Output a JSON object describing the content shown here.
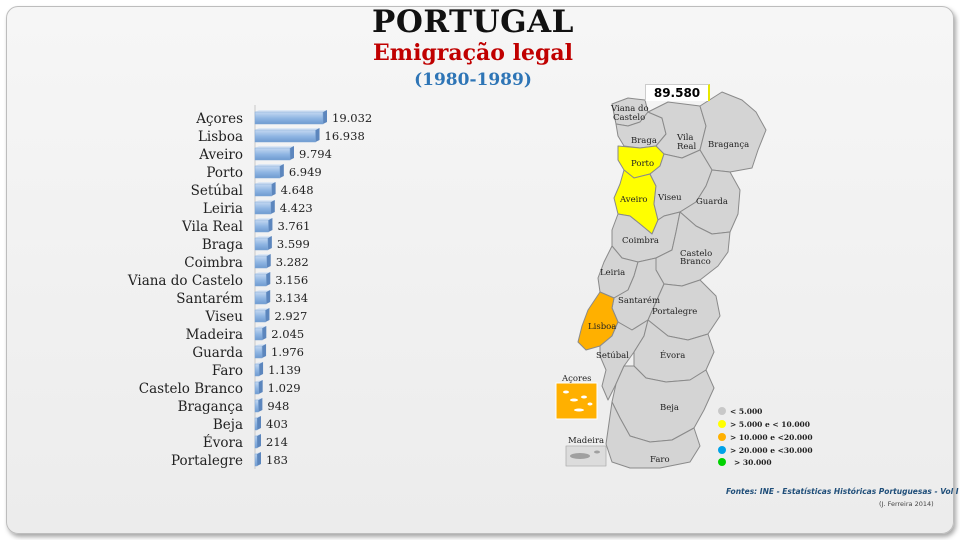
{
  "header": {
    "title": "PORTUGAL",
    "subtitle": "Emigração legal",
    "period": "(1980-1989)"
  },
  "map": {
    "total_label": "89.580",
    "district_labels": [
      "Viana do Castelo",
      "Braga",
      "Vila Real",
      "Bragança",
      "Porto",
      "Aveiro",
      "Viseu",
      "Guarda",
      "Coimbra",
      "Castelo Branco",
      "Leiria",
      "Santarém",
      "Portalegre",
      "Lisboa",
      "Setúbal",
      "Évora",
      "Beja",
      "Faro",
      "Açores",
      "Madeira"
    ],
    "legend": [
      {
        "label": "< 5.000",
        "color": "#c8c8c8"
      },
      {
        "label": "> 5.000 e < 10.000",
        "color": "#ffff00"
      },
      {
        "label": "> 10.000 e <20.000",
        "color": "#ffb000"
      },
      {
        "label": "> 20.000 e <30.000",
        "color": "#00a2e8"
      },
      {
        "label": "> 30.000",
        "color": "#00d200"
      }
    ],
    "fill_colors": {
      "gray": "#d4d4d4",
      "yellow": "#ffff00",
      "orange": "#ffb000"
    }
  },
  "footer": {
    "source": "Fontes: INE - Estatísticas Históricas Portuguesas - Vol I",
    "credit": "(J. Ferreira 2014)"
  },
  "chart_data": {
    "type": "bar",
    "orientation": "horizontal",
    "categories": [
      "Açores",
      "Lisboa",
      "Aveiro",
      "Porto",
      "Setúbal",
      "Leiria",
      "Vila Real",
      "Braga",
      "Coimbra",
      "Viana do Castelo",
      "Santarém",
      "Viseu",
      "Madeira",
      "Guarda",
      "Faro",
      "Castelo Branco",
      "Bragança",
      "Beja",
      "Évora",
      "Portalegre"
    ],
    "values": [
      19032,
      16938,
      9794,
      6949,
      4648,
      4423,
      3761,
      3599,
      3282,
      3156,
      3134,
      2927,
      2045,
      1976,
      1139,
      1029,
      948,
      403,
      214,
      183
    ],
    "value_labels": [
      "19.032",
      "16.938",
      "9.794",
      "6.949",
      "4.648",
      "4.423",
      "3.761",
      "3.599",
      "3.282",
      "3.156",
      "3.134",
      "2.927",
      "2.045",
      "1.976",
      "1.139",
      "1.029",
      "948",
      "403",
      "214",
      "183"
    ],
    "bar_color": "#8db4e2",
    "xlim": [
      0,
      19032
    ],
    "grid": false
  }
}
